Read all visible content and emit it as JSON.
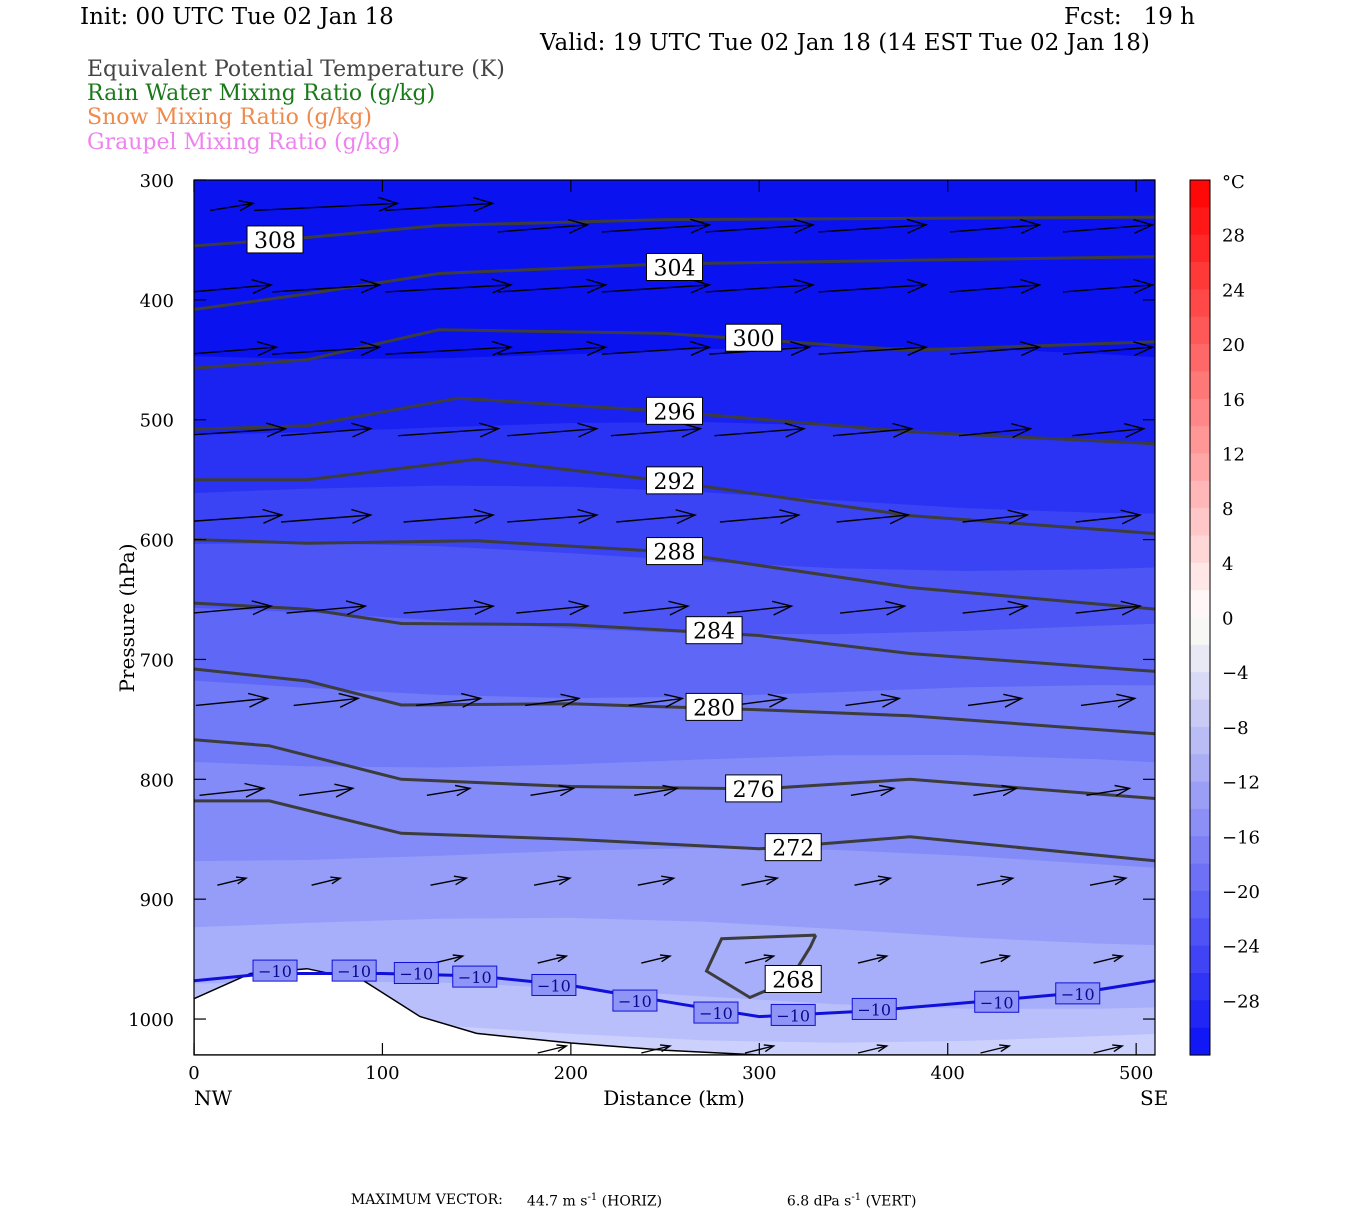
{
  "header": {
    "init": "Init: 00 UTC Tue 02 Jan 18",
    "fcst": "Fcst:   19 h",
    "valid": "Valid: 19 UTC Tue 02 Jan 18 (14 EST Tue 02 Jan 18)"
  },
  "legend": [
    {
      "text": "Equivalent Potential Temperature (K)",
      "color": "#444444"
    },
    {
      "text": "Rain Water Mixing Ratio (g/kg)",
      "color": "#1a7a1a"
    },
    {
      "text": "Snow Mixing Ratio (g/kg)",
      "color": "#f08a4b"
    },
    {
      "text": "Graupel Mixing Ratio (g/kg)",
      "color": "#ee82ee"
    }
  ],
  "footer": {
    "max_vector_label": "MAXIMUM VECTOR:",
    "horiz_value": "44.7 m s",
    "horiz_exp": "-1",
    "horiz_tag": "(HORIZ)",
    "vert_value": "6.8 dPa s",
    "vert_exp": "-1",
    "vert_tag": "(VERT)"
  },
  "chart_data": {
    "type": "contour",
    "xlabel": "Distance (km)",
    "ylabel": "Pressure (hPa)",
    "xlim": [
      0,
      510
    ],
    "ylim": [
      1030,
      300
    ],
    "x_ticks": [
      0,
      100,
      200,
      300,
      400,
      500
    ],
    "y_ticks": [
      300,
      400,
      500,
      600,
      700,
      800,
      900,
      1000
    ],
    "x_end_labels": {
      "left": "NW",
      "right": "SE"
    },
    "colorbar": {
      "unit": "°C",
      "tick_labels": [
        "28",
        "24",
        "20",
        "16",
        "12",
        "8",
        "4",
        "0",
        "−4",
        "−8",
        "−12",
        "−16",
        "−20",
        "−24",
        "−28"
      ],
      "tick_values": [
        28,
        24,
        20,
        16,
        12,
        8,
        4,
        0,
        -4,
        -8,
        -12,
        -16,
        -20,
        -24,
        -28
      ],
      "range": [
        -32,
        32
      ]
    },
    "theta_e_contours": [
      {
        "label": "308",
        "label_at": [
          43,
          350
        ],
        "points": [
          [
            0,
            355
          ],
          [
            60,
            348
          ],
          [
            130,
            338
          ],
          [
            250,
            333
          ],
          [
            380,
            332
          ],
          [
            510,
            331
          ]
        ]
      },
      {
        "label": "304",
        "label_at": [
          255,
          373
        ],
        "points": [
          [
            0,
            408
          ],
          [
            60,
            395
          ],
          [
            130,
            378
          ],
          [
            250,
            370
          ],
          [
            380,
            367
          ],
          [
            510,
            364
          ]
        ]
      },
      {
        "label": "300",
        "label_at": [
          297,
          432
        ],
        "points": [
          [
            0,
            457
          ],
          [
            60,
            450
          ],
          [
            130,
            425
          ],
          [
            250,
            428
          ],
          [
            380,
            442
          ],
          [
            510,
            435
          ]
        ]
      },
      {
        "label": "296",
        "label_at": [
          255,
          493
        ],
        "points": [
          [
            0,
            508
          ],
          [
            60,
            505
          ],
          [
            140,
            482
          ],
          [
            250,
            493
          ],
          [
            380,
            510
          ],
          [
            510,
            520
          ]
        ]
      },
      {
        "label": "292",
        "label_at": [
          255,
          551
        ],
        "points": [
          [
            0,
            550
          ],
          [
            60,
            550
          ],
          [
            150,
            533
          ],
          [
            250,
            551
          ],
          [
            380,
            580
          ],
          [
            510,
            595
          ]
        ]
      },
      {
        "label": "288",
        "label_at": [
          255,
          610
        ],
        "points": [
          [
            0,
            600
          ],
          [
            60,
            603
          ],
          [
            150,
            601
          ],
          [
            250,
            610
          ],
          [
            380,
            640
          ],
          [
            510,
            658
          ]
        ]
      },
      {
        "label": "284",
        "label_at": [
          276,
          676
        ],
        "points": [
          [
            0,
            653
          ],
          [
            60,
            658
          ],
          [
            110,
            670
          ],
          [
            200,
            671
          ],
          [
            300,
            680
          ],
          [
            380,
            695
          ],
          [
            510,
            710
          ]
        ]
      },
      {
        "label": "280",
        "label_at": [
          276,
          740
        ],
        "points": [
          [
            0,
            708
          ],
          [
            60,
            718
          ],
          [
            110,
            738
          ],
          [
            200,
            737
          ],
          [
            300,
            742
          ],
          [
            380,
            747
          ],
          [
            510,
            762
          ]
        ]
      },
      {
        "label": "276",
        "label_at": [
          297,
          808
        ],
        "points": [
          [
            0,
            767
          ],
          [
            40,
            772
          ],
          [
            110,
            800
          ],
          [
            200,
            806
          ],
          [
            300,
            808
          ],
          [
            380,
            800
          ],
          [
            510,
            816
          ]
        ]
      },
      {
        "label": "272",
        "label_at": [
          318,
          857
        ],
        "points": [
          [
            0,
            818
          ],
          [
            40,
            818
          ],
          [
            110,
            845
          ],
          [
            200,
            850
          ],
          [
            300,
            858
          ],
          [
            380,
            848
          ],
          [
            510,
            868
          ]
        ]
      },
      {
        "label": "268",
        "label_at": [
          318,
          967
        ],
        "points": [
          [
            330,
            930
          ],
          [
            280,
            933
          ],
          [
            272,
            960
          ],
          [
            295,
            982
          ],
          [
            316,
            968
          ],
          [
            327,
            940
          ],
          [
            330,
            930
          ]
        ]
      }
    ],
    "temperature_isotherm": {
      "value_label": "−10",
      "label_positions": [
        [
          43,
          960
        ],
        [
          85,
          960
        ],
        [
          118,
          962
        ],
        [
          149,
          965
        ],
        [
          191,
          972
        ],
        [
          234,
          985
        ],
        [
          277,
          995
        ],
        [
          318,
          997
        ],
        [
          361,
          992
        ],
        [
          426,
          986
        ],
        [
          469,
          979
        ]
      ],
      "points": [
        [
          0,
          968
        ],
        [
          40,
          962
        ],
        [
          100,
          962
        ],
        [
          150,
          964
        ],
        [
          200,
          972
        ],
        [
          260,
          988
        ],
        [
          300,
          998
        ],
        [
          360,
          993
        ],
        [
          420,
          985
        ],
        [
          470,
          978
        ],
        [
          510,
          968
        ]
      ]
    },
    "terrain": [
      [
        0,
        983
      ],
      [
        30,
        962
      ],
      [
        60,
        958
      ],
      [
        90,
        968
      ],
      [
        120,
        998
      ],
      [
        150,
        1012
      ],
      [
        200,
        1020
      ],
      [
        250,
        1026
      ],
      [
        300,
        1030
      ],
      [
        510,
        1030
      ]
    ],
    "wind_vectors": {
      "note": "horizontal wind arrows",
      "rows": [
        {
          "p": 322,
          "x": [
            20,
            70,
            130
          ],
          "dx": [
            12,
            40,
            30
          ]
        },
        {
          "p": 340,
          "x": [
            185,
            245,
            300,
            360,
            425,
            485
          ],
          "dx": [
            25,
            30,
            30,
            30,
            25,
            25
          ]
        },
        {
          "p": 390,
          "x": [
            20,
            70,
            135,
            190,
            245,
            300,
            360,
            425,
            485
          ],
          "dx": [
            22,
            30,
            35,
            30,
            30,
            30,
            30,
            25,
            25
          ]
        },
        {
          "p": 442,
          "x": [
            20,
            70,
            135,
            190,
            245,
            300,
            360,
            425,
            485
          ],
          "dx": [
            25,
            30,
            35,
            30,
            30,
            28,
            30,
            25,
            25
          ]
        },
        {
          "p": 510,
          "x": [
            20,
            70,
            135,
            190,
            245,
            300,
            360,
            425,
            485
          ],
          "dx": [
            30,
            25,
            28,
            25,
            25,
            25,
            22,
            20,
            20
          ]
        },
        {
          "p": 582,
          "x": [
            20,
            70,
            135,
            190,
            245,
            300,
            360,
            425,
            485
          ],
          "dx": [
            28,
            25,
            25,
            25,
            22,
            22,
            20,
            18,
            18
          ]
        },
        {
          "p": 658,
          "x": [
            20,
            70,
            135,
            190,
            245,
            300,
            360,
            425,
            485
          ],
          "dx": [
            22,
            22,
            25,
            20,
            18,
            18,
            18,
            18,
            18
          ]
        },
        {
          "p": 735,
          "x": [
            20,
            70,
            135,
            190,
            245,
            300,
            360,
            425,
            485
          ],
          "dx": [
            20,
            18,
            18,
            15,
            15,
            15,
            15,
            15,
            15
          ]
        },
        {
          "p": 810,
          "x": [
            20,
            70,
            135,
            190,
            245,
            300,
            360,
            425,
            485
          ],
          "dx": [
            18,
            15,
            12,
            12,
            12,
            12,
            12,
            12,
            12
          ]
        },
        {
          "p": 885,
          "x": [
            20,
            70,
            135,
            190,
            245,
            300,
            360,
            425,
            485
          ],
          "dx": [
            8,
            8,
            10,
            10,
            10,
            10,
            10,
            10,
            10
          ]
        },
        {
          "p": 950,
          "x": [
            135,
            190,
            245,
            300,
            360,
            425,
            485
          ],
          "dx": [
            8,
            8,
            8,
            8,
            8,
            8,
            8
          ]
        },
        {
          "p": 1025,
          "x": [
            190,
            245,
            300,
            360,
            425,
            485
          ],
          "dx": [
            8,
            8,
            8,
            8,
            8,
            8
          ]
        }
      ]
    }
  }
}
